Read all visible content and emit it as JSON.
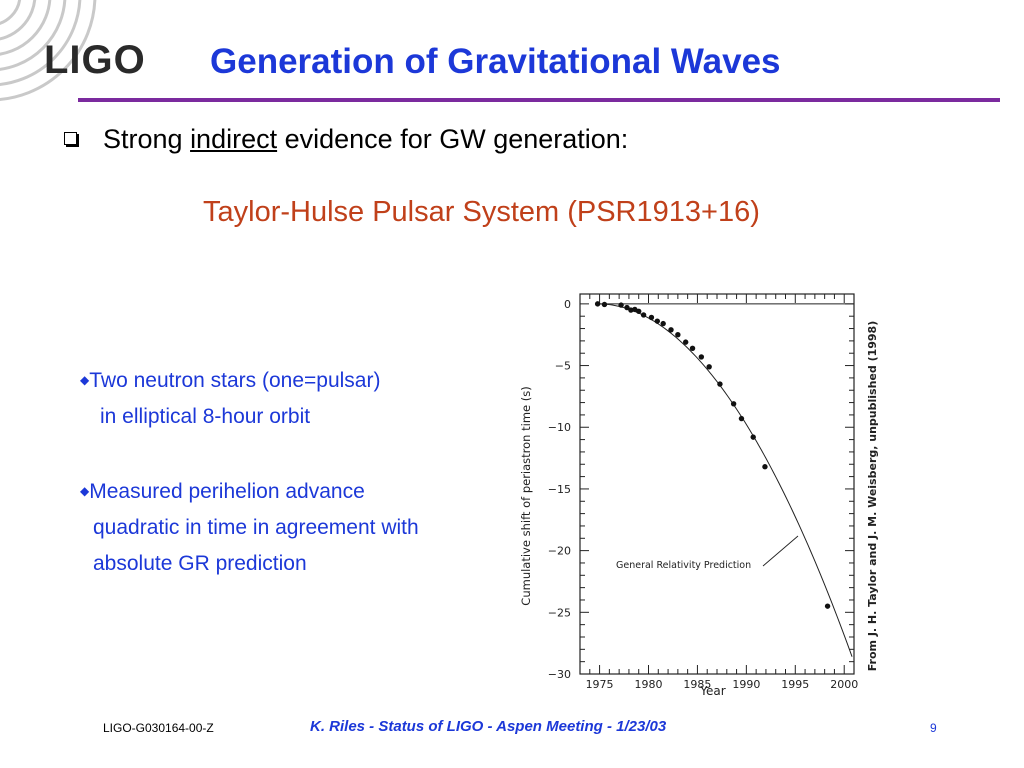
{
  "header": {
    "logo_text": "LIGO",
    "title": "Generation of Gravitational Waves"
  },
  "main": {
    "bullet_prefix": "Strong ",
    "bullet_underlined": "indirect",
    "bullet_suffix": " evidence for GW generation:",
    "subtitle": "Taylor-Hulse Pulsar System (PSR1913+16)",
    "points": [
      {
        "marker": "◆",
        "line1": "Two neutron stars (one=pulsar)",
        "line2": "in elliptical 8-hour orbit"
      },
      {
        "marker": "◆",
        "line1": "Measured perihelion advance",
        "line2": "quadratic in time in agreement with",
        "line3": "absolute GR prediction"
      }
    ]
  },
  "chart_data": {
    "type": "scatter",
    "xlabel": "Year",
    "ylabel": "Cumulative shift of periastron time (s)",
    "xlim": [
      1973,
      2001
    ],
    "ylim": [
      -30,
      0.8
    ],
    "xticks": [
      1975,
      1980,
      1985,
      1990,
      1995,
      2000
    ],
    "yticks": [
      0,
      -5,
      -10,
      -15,
      -20,
      -25,
      -30
    ],
    "xtick_labels": [
      "1975",
      "1980",
      "1985",
      "1990",
      "1995",
      "2000"
    ],
    "ytick_labels": [
      "0",
      "−5",
      "−10",
      "−15",
      "−20",
      "−25",
      "−30"
    ],
    "annotation": "General Relativity Prediction",
    "side_note": "From J. H. Taylor and J. M. Weisberg, unpublished (1998)",
    "prediction_curve": {
      "x0": 1974.8,
      "x1": 2001,
      "coefficient": -0.0423
    },
    "points": [
      {
        "x": 1974.8,
        "y": 0.0
      },
      {
        "x": 1975.5,
        "y": -0.05
      },
      {
        "x": 1977.2,
        "y": -0.1
      },
      {
        "x": 1977.8,
        "y": -0.3
      },
      {
        "x": 1978.2,
        "y": -0.5
      },
      {
        "x": 1978.6,
        "y": -0.45
      },
      {
        "x": 1979.0,
        "y": -0.6
      },
      {
        "x": 1979.5,
        "y": -0.9
      },
      {
        "x": 1980.3,
        "y": -1.1
      },
      {
        "x": 1980.9,
        "y": -1.4
      },
      {
        "x": 1981.5,
        "y": -1.6
      },
      {
        "x": 1982.3,
        "y": -2.1
      },
      {
        "x": 1983.0,
        "y": -2.5
      },
      {
        "x": 1983.8,
        "y": -3.1
      },
      {
        "x": 1984.5,
        "y": -3.6
      },
      {
        "x": 1985.4,
        "y": -4.3
      },
      {
        "x": 1986.2,
        "y": -5.1
      },
      {
        "x": 1987.3,
        "y": -6.5
      },
      {
        "x": 1988.7,
        "y": -8.1
      },
      {
        "x": 1989.5,
        "y": -9.3
      },
      {
        "x": 1990.7,
        "y": -10.8
      },
      {
        "x": 1991.9,
        "y": -13.2
      },
      {
        "x": 1998.3,
        "y": -24.5
      }
    ]
  },
  "footer": {
    "doc_id": "LIGO-G030164-00-Z",
    "center": "K. Riles - Status of LIGO - Aspen Meeting - 1/23/03",
    "page": "9"
  }
}
